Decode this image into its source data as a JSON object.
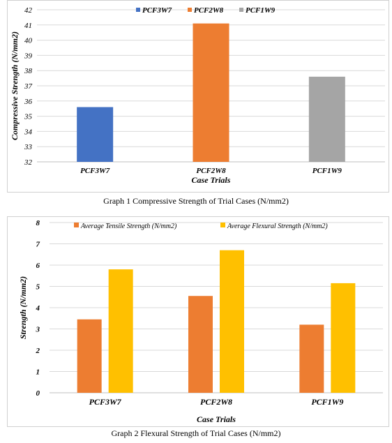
{
  "chart_data": [
    {
      "type": "bar",
      "caption": "Graph 1 Compressive Strength of Trial Cases (N/mm2)",
      "title": "",
      "xlabel": "Case Trials",
      "ylabel": "Compressive Strength (N/mm2)",
      "ylim": [
        32,
        42
      ],
      "yticks": [
        32,
        33,
        34,
        35,
        36,
        37,
        38,
        39,
        40,
        41,
        42
      ],
      "categories": [
        "PCF3W7",
        "PCF2W8",
        "PCF1W9"
      ],
      "values": [
        35.6,
        41.1,
        37.6
      ],
      "bar_colors": [
        "#4472C4",
        "#ED7D31",
        "#A5A5A5"
      ],
      "legend": [
        "PCF3W7",
        "PCF2W8",
        "PCF1W9"
      ],
      "legend_position": "top",
      "grid": true
    },
    {
      "type": "bar",
      "caption": "Graph 2 Flexural Strength of Trial Cases (N/mm2)",
      "title": "",
      "xlabel": "Case Trials",
      "ylabel": "Strength (N/mm2)",
      "ylim": [
        0,
        8
      ],
      "yticks": [
        0,
        1,
        2,
        3,
        4,
        5,
        6,
        7,
        8
      ],
      "categories": [
        "PCF3W7",
        "PCF2W8",
        "PCF1W9"
      ],
      "series": [
        {
          "name": "Average Tensile Strength (N/mm2)",
          "values": [
            3.45,
            4.55,
            3.2
          ],
          "color": "#ED7D31"
        },
        {
          "name": "Average Flexural Strength (N/mm2)",
          "values": [
            5.8,
            6.7,
            5.15
          ],
          "color": "#FFC000"
        }
      ],
      "legend_position": "top",
      "grid": true
    }
  ]
}
